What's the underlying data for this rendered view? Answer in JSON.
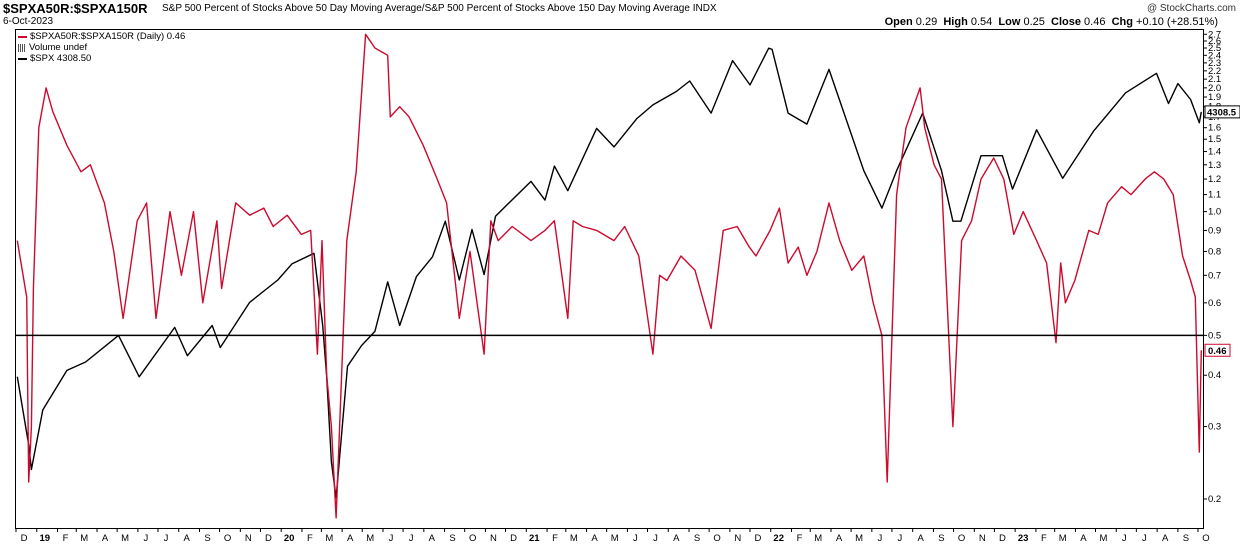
{
  "header": {
    "symbol": "$SPXA50R:$SPXA150R",
    "description": "S&P 500 Percent of Stocks Above 50 Day Moving Average/S&P 500 Percent of Stocks Above 150 Day Moving Average",
    "exchange": "INDX",
    "date": "6-Oct-2023",
    "brand": "@ StockCharts.com",
    "open_label": "Open",
    "open": "0.29",
    "high_label": "High",
    "high": "0.54",
    "low_label": "Low",
    "low": "0.25",
    "close_label": "Close",
    "close": "0.46",
    "chg_label": "Chg",
    "chg": "+0.10 (+28.51%)"
  },
  "legend": {
    "ratio": "$SPXA50R:$SPXA150R (Daily) 0.46",
    "volume": "Volume undef",
    "spx": "$SPX 4308.50"
  },
  "colors": {
    "ratio": "#cc0a2e",
    "spx": "#000000",
    "reference_line": "#000000"
  },
  "chart_data": {
    "type": "line",
    "yscale": "log",
    "y_ticks": [
      0.2,
      0.3,
      0.4,
      0.5,
      0.6,
      0.7,
      0.8,
      0.9,
      1.0,
      1.1,
      1.2,
      1.3,
      1.4,
      1.5,
      1.6,
      1.7,
      1.8,
      1.9,
      2.0,
      2.1,
      2.2,
      2.3,
      2.4,
      2.5,
      2.6,
      2.7
    ],
    "y_tick_labels": [
      "0.2",
      "0.3",
      "0.4",
      "0.5",
      "0.6",
      "0.7",
      "0.8",
      "0.9",
      "1.0",
      "1.1",
      "1.2",
      "1.3",
      "1.4",
      "1.5",
      "1.6",
      "1.7",
      "1.8",
      "1.9",
      "2.0",
      "2.1",
      "2.2",
      "2.3",
      "2.4",
      "2.5",
      "2.6",
      "2.7"
    ],
    "ylim": [
      0.17,
      2.75
    ],
    "reference_line": 0.5,
    "last_value_label": "0.46",
    "spx_last_label": "4308.5",
    "x_tick_labels": [
      "D",
      "19",
      "F",
      "M",
      "A",
      "M",
      "J",
      "J",
      "A",
      "S",
      "O",
      "N",
      "D",
      "20",
      "F",
      "M",
      "A",
      "M",
      "J",
      "J",
      "A",
      "S",
      "O",
      "N",
      "D",
      "21",
      "F",
      "M",
      "A",
      "M",
      "J",
      "J",
      "A",
      "S",
      "O",
      "N",
      "D",
      "22",
      "F",
      "M",
      "A",
      "M",
      "J",
      "J",
      "A",
      "S",
      "O",
      "N",
      "D",
      "23",
      "F",
      "M",
      "A",
      "M",
      "J",
      "J",
      "A",
      "S",
      "O"
    ],
    "bold_ticks": [
      "19",
      "20",
      "21",
      "22",
      "23"
    ],
    "series": [
      {
        "name": "$SPXA50R:$SPXA150R",
        "x": [
          "2018-12-03",
          "2018-12-17",
          "2018-12-20",
          "2018-12-24",
          "2018-12-27",
          "2019-01-04",
          "2019-01-15",
          "2019-01-25",
          "2019-02-15",
          "2019-03-08",
          "2019-03-22",
          "2019-04-12",
          "2019-04-26",
          "2019-05-10",
          "2019-05-31",
          "2019-06-14",
          "2019-06-28",
          "2019-07-19",
          "2019-08-05",
          "2019-08-23",
          "2019-09-06",
          "2019-09-27",
          "2019-10-04",
          "2019-10-25",
          "2019-11-15",
          "2019-12-06",
          "2019-12-20",
          "2020-01-10",
          "2020-01-31",
          "2020-02-14",
          "2020-02-24",
          "2020-03-02",
          "2020-03-09",
          "2020-03-16",
          "2020-03-23",
          "2020-04-08",
          "2020-04-22",
          "2020-05-06",
          "2020-05-20",
          "2020-06-08",
          "2020-06-12",
          "2020-06-26",
          "2020-07-10",
          "2020-07-31",
          "2020-08-21",
          "2020-09-04",
          "2020-09-23",
          "2020-10-09",
          "2020-10-30",
          "2020-11-09",
          "2020-11-20",
          "2020-12-11",
          "2021-01-08",
          "2021-01-29",
          "2021-02-12",
          "2021-03-04",
          "2021-03-12",
          "2021-03-26",
          "2021-04-16",
          "2021-05-12",
          "2021-05-28",
          "2021-06-18",
          "2021-07-09",
          "2021-07-19",
          "2021-07-30",
          "2021-08-20",
          "2021-09-10",
          "2021-10-04",
          "2021-10-22",
          "2021-11-12",
          "2021-11-30",
          "2021-12-10",
          "2021-12-31",
          "2022-01-14",
          "2022-01-27",
          "2022-02-11",
          "2022-02-24",
          "2022-03-11",
          "2022-03-29",
          "2022-04-14",
          "2022-05-02",
          "2022-05-20",
          "2022-06-03",
          "2022-06-16",
          "2022-06-24",
          "2022-07-08",
          "2022-07-22",
          "2022-08-12",
          "2022-08-19",
          "2022-09-02",
          "2022-09-13",
          "2022-09-30",
          "2022-10-13",
          "2022-10-28",
          "2022-11-11",
          "2022-11-30",
          "2022-12-15",
          "2022-12-30",
          "2023-01-13",
          "2023-02-02",
          "2023-02-17",
          "2023-03-03",
          "2023-03-10",
          "2023-03-17",
          "2023-03-31",
          "2023-04-21",
          "2023-05-05",
          "2023-05-19",
          "2023-06-09",
          "2023-06-23",
          "2023-07-14",
          "2023-07-28",
          "2023-08-11",
          "2023-08-25",
          "2023-09-08",
          "2023-09-20",
          "2023-09-27",
          "2023-10-03",
          "2023-10-06"
        ],
        "values": [
          0.85,
          0.62,
          0.22,
          0.3,
          0.65,
          1.6,
          2.0,
          1.75,
          1.45,
          1.25,
          1.3,
          1.05,
          0.8,
          0.55,
          0.95,
          1.05,
          0.55,
          1.0,
          0.7,
          1.0,
          0.6,
          0.95,
          0.65,
          1.05,
          0.98,
          1.02,
          0.92,
          0.98,
          0.88,
          0.9,
          0.45,
          0.85,
          0.4,
          0.3,
          0.18,
          0.85,
          1.25,
          2.7,
          2.5,
          2.4,
          1.7,
          1.8,
          1.7,
          1.45,
          1.2,
          1.05,
          0.55,
          0.8,
          0.45,
          0.95,
          0.85,
          0.92,
          0.85,
          0.9,
          0.95,
          0.55,
          0.95,
          0.92,
          0.9,
          0.85,
          0.92,
          0.78,
          0.45,
          0.7,
          0.68,
          0.78,
          0.72,
          0.52,
          0.9,
          0.92,
          0.82,
          0.78,
          0.9,
          1.02,
          0.75,
          0.82,
          0.7,
          0.8,
          1.05,
          0.85,
          0.72,
          0.78,
          0.6,
          0.5,
          0.22,
          1.1,
          1.6,
          2.0,
          1.6,
          1.3,
          1.2,
          0.3,
          0.85,
          0.95,
          1.2,
          1.35,
          1.2,
          0.88,
          1.0,
          0.85,
          0.75,
          0.48,
          0.75,
          0.6,
          0.68,
          0.9,
          0.88,
          1.05,
          1.15,
          1.1,
          1.2,
          1.25,
          1.2,
          1.1,
          0.78,
          0.68,
          0.62,
          0.26,
          0.46
        ]
      },
      {
        "name": "$SPX",
        "x": [
          "2018-12-03",
          "2018-12-20",
          "2018-12-24",
          "2019-01-10",
          "2019-02-15",
          "2019-03-15",
          "2019-05-03",
          "2019-06-03",
          "2019-07-26",
          "2019-08-14",
          "2019-09-20",
          "2019-10-02",
          "2019-11-15",
          "2019-12-27",
          "2020-01-17",
          "2020-02-19",
          "2020-03-03",
          "2020-03-09",
          "2020-03-16",
          "2020-03-23",
          "2020-04-09",
          "2020-04-30",
          "2020-05-20",
          "2020-06-08",
          "2020-06-26",
          "2020-07-21",
          "2020-08-14",
          "2020-09-02",
          "2020-09-23",
          "2020-10-12",
          "2020-10-30",
          "2020-11-16",
          "2020-12-08",
          "2021-01-08",
          "2021-01-29",
          "2021-02-12",
          "2021-03-04",
          "2021-04-16",
          "2021-05-12",
          "2021-06-15",
          "2021-07-09",
          "2021-08-13",
          "2021-09-02",
          "2021-10-04",
          "2021-11-05",
          "2021-12-01",
          "2021-12-29",
          "2022-01-03",
          "2022-01-27",
          "2022-02-24",
          "2022-03-29",
          "2022-05-20",
          "2022-06-16",
          "2022-07-08",
          "2022-08-16",
          "2022-09-13",
          "2022-09-30",
          "2022-10-12",
          "2022-11-11",
          "2022-12-13",
          "2022-12-28",
          "2023-02-02",
          "2023-03-13",
          "2023-04-28",
          "2023-06-15",
          "2023-07-31",
          "2023-08-18",
          "2023-09-01",
          "2023-09-20",
          "2023-10-03",
          "2023-10-06"
        ],
        "values": [
          2750,
          2450,
          2350,
          2600,
          2780,
          2820,
          2950,
          2750,
          2990,
          2850,
          3000,
          2890,
          3120,
          3240,
          3330,
          3390,
          3000,
          2750,
          2380,
          2240,
          2800,
          2900,
          2970,
          3230,
          3000,
          3260,
          3370,
          3580,
          3240,
          3530,
          3270,
          3610,
          3700,
          3830,
          3710,
          3930,
          3770,
          4190,
          4060,
          4260,
          4360,
          4460,
          4540,
          4300,
          4700,
          4510,
          4800,
          4790,
          4300,
          4220,
          4630,
          3900,
          3660,
          3900,
          4300,
          3900,
          3580,
          3580,
          4000,
          4000,
          3780,
          4180,
          3850,
          4170,
          4450,
          4600,
          4370,
          4520,
          4400,
          4230,
          4308.5
        ]
      }
    ]
  }
}
